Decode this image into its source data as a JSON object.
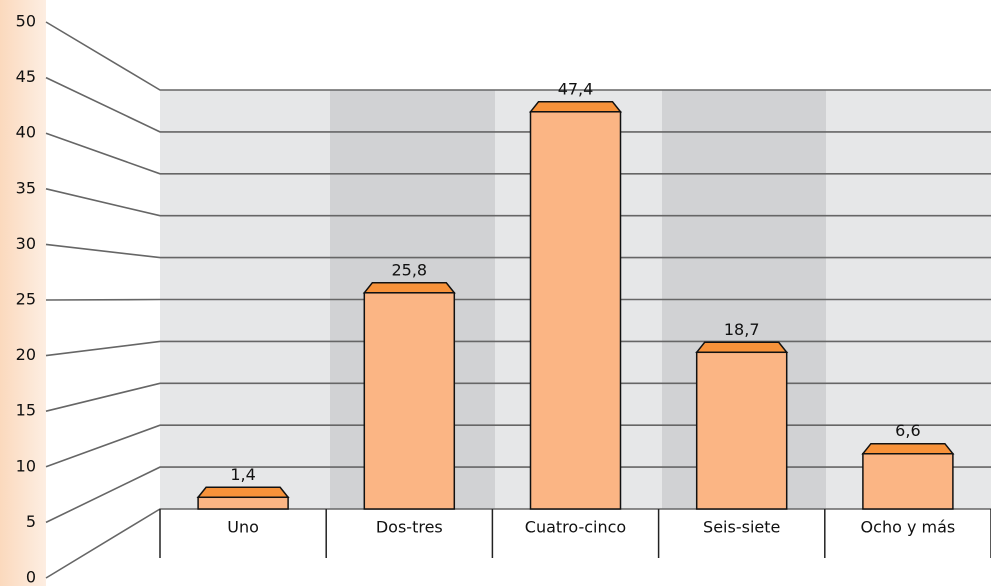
{
  "chart_data": {
    "type": "bar",
    "categories": [
      "Uno",
      "Dos-tres",
      "Cuatro-cinco",
      "Seis-siete",
      "Ocho y más"
    ],
    "values": [
      1.4,
      25.8,
      47.4,
      18.7,
      6.6
    ],
    "value_labels": [
      "1,4",
      "25,8",
      "47,4",
      "18,7",
      "6,6"
    ],
    "color": "#fbb584",
    "ylim": [
      0,
      50
    ],
    "yticks": [
      0,
      5,
      10,
      15,
      20,
      25,
      30,
      35,
      40,
      45,
      50
    ],
    "grid": true
  }
}
